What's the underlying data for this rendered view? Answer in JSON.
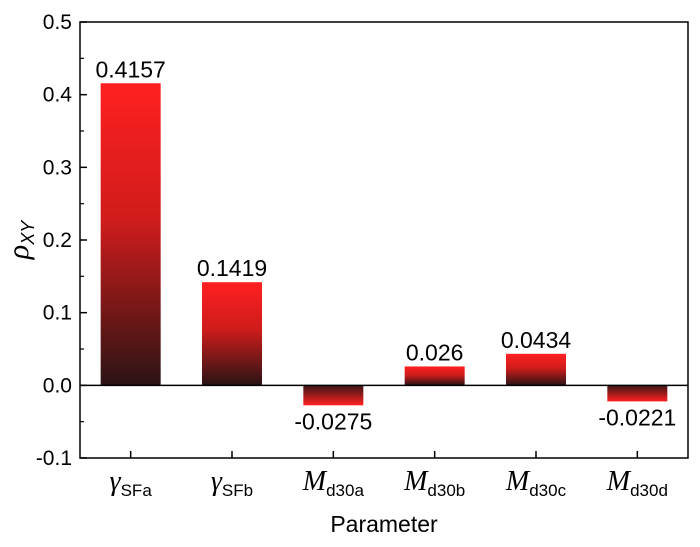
{
  "chart_data": {
    "type": "bar",
    "categories": [
      {
        "main": "γ",
        "sub": "SFa"
      },
      {
        "main": "γ",
        "sub": "SFb"
      },
      {
        "main": "M",
        "sub": "d30a"
      },
      {
        "main": "M",
        "sub": "d30b"
      },
      {
        "main": "M",
        "sub": "d30c"
      },
      {
        "main": "M",
        "sub": "d30d"
      }
    ],
    "values": [
      0.4157,
      0.1419,
      -0.0275,
      0.026,
      0.0434,
      -0.0221
    ],
    "data_labels": [
      "0.4157",
      "0.1419",
      "-0.0275",
      "0.026",
      "0.0434",
      "-0.0221"
    ],
    "xlabel": "Parameter",
    "ylabel": {
      "main": "ρ",
      "sub": "XY"
    },
    "ylim": [
      -0.1,
      0.5
    ],
    "yticks": [
      -0.1,
      0.0,
      0.1,
      0.2,
      0.3,
      0.4,
      0.5
    ],
    "ytick_labels": [
      "-0.1",
      "0.0",
      "0.1",
      "0.2",
      "0.3",
      "0.4",
      "0.5"
    ],
    "grid": false,
    "colors": {
      "bar_top": "#ff2020",
      "bar_bottom": "#2a1414",
      "axis": "#000000"
    }
  }
}
